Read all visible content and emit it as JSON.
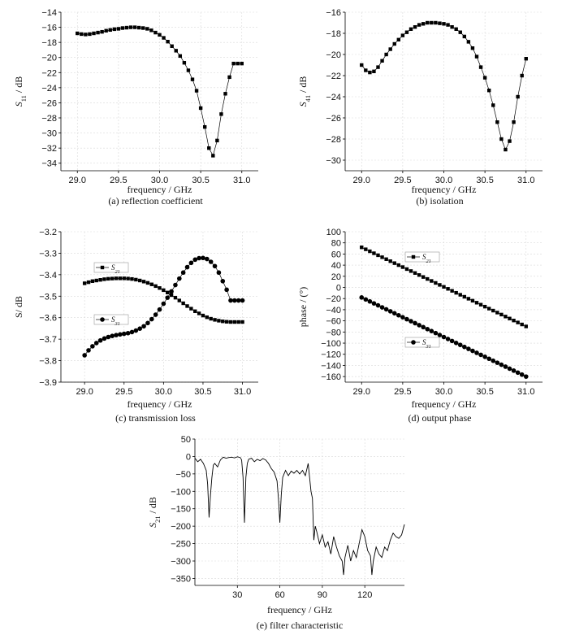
{
  "chart_data": [
    {
      "id": "a",
      "type": "line",
      "caption": "(a) reflection coefficient",
      "xlabel": "frequency / GHz",
      "ylabel": "S11 / dB",
      "xlim": [
        28.8,
        31.2
      ],
      "ylim": [
        -35,
        -14
      ],
      "xticks": [
        29.0,
        29.5,
        30.0,
        30.5,
        31.0
      ],
      "yticks": [
        -34,
        -32,
        -30,
        -28,
        -26,
        -24,
        -22,
        -20,
        -18,
        -16,
        -14
      ],
      "series": [
        {
          "marker": "square",
          "x": [
            29.0,
            29.05,
            29.1,
            29.15,
            29.2,
            29.25,
            29.3,
            29.35,
            29.4,
            29.45,
            29.5,
            29.55,
            29.6,
            29.65,
            29.7,
            29.75,
            29.8,
            29.85,
            29.9,
            29.95,
            30.0,
            30.05,
            30.1,
            30.15,
            30.2,
            30.25,
            30.3,
            30.35,
            30.4,
            30.45,
            30.5,
            30.55,
            30.6,
            30.65,
            30.7,
            30.75,
            30.8,
            30.85,
            30.9,
            30.95,
            31.0
          ],
          "y": [
            -16.8,
            -16.9,
            -16.95,
            -16.9,
            -16.8,
            -16.7,
            -16.6,
            -16.45,
            -16.35,
            -16.25,
            -16.2,
            -16.1,
            -16.05,
            -16.0,
            -16.0,
            -16.05,
            -16.1,
            -16.2,
            -16.4,
            -16.7,
            -17.0,
            -17.4,
            -17.9,
            -18.5,
            -19.1,
            -19.8,
            -20.7,
            -21.7,
            -22.9,
            -24.4,
            -26.7,
            -29.2,
            -32.0,
            -33.0,
            -31.0,
            -27.5,
            -24.8,
            -22.6,
            -20.8,
            -20.8,
            -20.8
          ]
        }
      ]
    },
    {
      "id": "b",
      "type": "line",
      "caption": "(b) isolation",
      "xlabel": "frequency / GHz",
      "ylabel": "S41 / dB",
      "xlim": [
        28.8,
        31.2
      ],
      "ylim": [
        -31,
        -16
      ],
      "xticks": [
        29.0,
        29.5,
        30.0,
        30.5,
        31.0
      ],
      "yticks": [
        -30,
        -28,
        -26,
        -24,
        -22,
        -20,
        -18,
        -16
      ],
      "series": [
        {
          "marker": "square",
          "x": [
            29.0,
            29.05,
            29.1,
            29.15,
            29.2,
            29.25,
            29.3,
            29.35,
            29.4,
            29.45,
            29.5,
            29.55,
            29.6,
            29.65,
            29.7,
            29.75,
            29.8,
            29.85,
            29.9,
            29.95,
            30.0,
            30.05,
            30.1,
            30.15,
            30.2,
            30.25,
            30.3,
            30.35,
            30.4,
            30.45,
            30.5,
            30.55,
            30.6,
            30.65,
            30.7,
            30.75,
            30.8,
            30.85,
            30.9,
            30.95,
            31.0
          ],
          "y": [
            -21.0,
            -21.5,
            -21.7,
            -21.6,
            -21.2,
            -20.6,
            -20.0,
            -19.5,
            -19.0,
            -18.6,
            -18.2,
            -17.9,
            -17.6,
            -17.4,
            -17.2,
            -17.1,
            -17.0,
            -17.0,
            -17.0,
            -17.05,
            -17.1,
            -17.2,
            -17.4,
            -17.6,
            -17.9,
            -18.3,
            -18.8,
            -19.4,
            -20.2,
            -21.2,
            -22.2,
            -23.4,
            -24.8,
            -26.4,
            -28.0,
            -29.0,
            -28.2,
            -26.4,
            -24.0,
            -22.0,
            -20.4
          ]
        }
      ]
    },
    {
      "id": "c",
      "type": "line",
      "caption": "(c) transmission loss",
      "xlabel": "frequency / GHz",
      "ylabel": "S/ dB",
      "xlim": [
        28.7,
        31.2
      ],
      "ylim": [
        -3.9,
        -3.2
      ],
      "xticks": [
        29.0,
        29.5,
        30.0,
        30.5,
        31.0
      ],
      "yticks": [
        -3.9,
        -3.8,
        -3.7,
        -3.6,
        -3.5,
        -3.4,
        -3.3,
        -3.2
      ],
      "legend": [
        "S21",
        "S31"
      ],
      "series": [
        {
          "name": "S21",
          "marker": "square",
          "x": [
            29.0,
            29.05,
            29.1,
            29.15,
            29.2,
            29.25,
            29.3,
            29.35,
            29.4,
            29.45,
            29.5,
            29.55,
            29.6,
            29.65,
            29.7,
            29.75,
            29.8,
            29.85,
            29.9,
            29.95,
            30.0,
            30.05,
            30.1,
            30.15,
            30.2,
            30.25,
            30.3,
            30.35,
            30.4,
            30.45,
            30.5,
            30.55,
            30.6,
            30.65,
            30.7,
            30.75,
            30.8,
            30.85,
            30.9,
            30.95,
            31.0
          ],
          "y": [
            -3.44,
            -3.435,
            -3.43,
            -3.427,
            -3.424,
            -3.421,
            -3.419,
            -3.418,
            -3.417,
            -3.417,
            -3.417,
            -3.418,
            -3.42,
            -3.423,
            -3.427,
            -3.432,
            -3.438,
            -3.445,
            -3.453,
            -3.462,
            -3.472,
            -3.483,
            -3.495,
            -3.507,
            -3.52,
            -3.533,
            -3.546,
            -3.558,
            -3.57,
            -3.58,
            -3.59,
            -3.598,
            -3.605,
            -3.61,
            -3.614,
            -3.617,
            -3.619,
            -3.62,
            -3.62,
            -3.62,
            -3.62
          ]
        },
        {
          "name": "S31",
          "marker": "circle",
          "x": [
            29.0,
            29.05,
            29.1,
            29.15,
            29.2,
            29.25,
            29.3,
            29.35,
            29.4,
            29.45,
            29.5,
            29.55,
            29.6,
            29.65,
            29.7,
            29.75,
            29.8,
            29.85,
            29.9,
            29.95,
            30.0,
            30.05,
            30.1,
            30.15,
            30.2,
            30.25,
            30.3,
            30.35,
            30.4,
            30.45,
            30.5,
            30.55,
            30.6,
            30.65,
            30.7,
            30.75,
            30.8,
            30.85,
            30.9,
            30.95,
            31.0
          ],
          "y": [
            -3.775,
            -3.752,
            -3.733,
            -3.718,
            -3.706,
            -3.697,
            -3.69,
            -3.685,
            -3.681,
            -3.678,
            -3.675,
            -3.672,
            -3.667,
            -3.66,
            -3.651,
            -3.64,
            -3.625,
            -3.607,
            -3.586,
            -3.562,
            -3.535,
            -3.507,
            -3.478,
            -3.448,
            -3.418,
            -3.39,
            -3.365,
            -3.345,
            -3.33,
            -3.323,
            -3.322,
            -3.327,
            -3.34,
            -3.36,
            -3.39,
            -3.43,
            -3.47,
            -3.52,
            -3.52,
            -3.52,
            -3.52
          ]
        }
      ]
    },
    {
      "id": "d",
      "type": "line",
      "caption": "(d) output phase",
      "xlabel": "frequency / GHz",
      "ylabel": "phase / (°)",
      "xlim": [
        28.8,
        31.2
      ],
      "ylim": [
        -170,
        100
      ],
      "xticks": [
        29.0,
        29.5,
        30.0,
        30.5,
        31.0
      ],
      "yticks": [
        -160,
        -140,
        -120,
        -100,
        -80,
        -60,
        -40,
        -20,
        0,
        20,
        40,
        60,
        80,
        100
      ],
      "legend": [
        "S21",
        "S31"
      ],
      "series": [
        {
          "name": "S21",
          "marker": "square",
          "x_start": 29.0,
          "x_end": 31.0,
          "y_start": 72,
          "y_end": -70,
          "count": 41
        },
        {
          "name": "S31",
          "marker": "circle",
          "x_start": 29.0,
          "x_end": 31.0,
          "y_start": -18,
          "y_end": -160,
          "count": 41
        }
      ]
    },
    {
      "id": "e",
      "type": "line",
      "caption": "(e) filter characteristic",
      "xlabel": "frequency / GHz",
      "ylabel": "S21 / dB",
      "xlim": [
        0,
        148
      ],
      "ylim": [
        -370,
        50
      ],
      "xticks": [
        30,
        60,
        90,
        120
      ],
      "yticks": [
        -350,
        -300,
        -250,
        -200,
        -150,
        -100,
        -50,
        0,
        50
      ],
      "series": [
        {
          "marker": "none",
          "x": [
            0,
            2,
            4,
            6,
            8,
            9,
            10,
            11,
            12,
            13,
            14,
            16,
            18,
            20,
            22,
            24,
            26,
            28,
            30,
            32,
            33,
            34,
            35,
            36,
            37,
            38,
            40,
            42,
            44,
            46,
            48,
            50,
            52,
            54,
            56,
            58,
            59,
            60,
            61,
            62,
            64,
            66,
            68,
            70,
            72,
            74,
            76,
            78,
            80,
            81,
            82,
            83,
            84,
            85,
            86,
            88,
            90,
            92,
            94,
            96,
            98,
            100,
            102,
            104,
            105,
            106,
            108,
            110,
            112,
            114,
            116,
            118,
            120,
            122,
            124,
            125,
            126,
            128,
            130,
            132,
            134,
            136,
            138,
            140,
            142,
            144,
            146,
            148
          ],
          "y": [
            -5,
            -15,
            -8,
            -20,
            -40,
            -80,
            -175,
            -110,
            -60,
            -25,
            -20,
            -30,
            -10,
            -2,
            -5,
            -3,
            -2,
            -4,
            -1,
            -3,
            -10,
            -60,
            -190,
            -60,
            -20,
            -8,
            -5,
            -15,
            -8,
            -12,
            -6,
            -10,
            -20,
            -35,
            -45,
            -70,
            -120,
            -190,
            -110,
            -60,
            -40,
            -55,
            -42,
            -48,
            -40,
            -50,
            -40,
            -55,
            -20,
            -60,
            -100,
            -120,
            -240,
            -200,
            -215,
            -250,
            -225,
            -260,
            -245,
            -280,
            -230,
            -260,
            -285,
            -300,
            -340,
            -290,
            -255,
            -300,
            -270,
            -290,
            -250,
            -210,
            -230,
            -270,
            -285,
            -340,
            -300,
            -260,
            -280,
            -290,
            -260,
            -270,
            -240,
            -220,
            -230,
            -235,
            -225,
            -195
          ]
        }
      ]
    }
  ]
}
